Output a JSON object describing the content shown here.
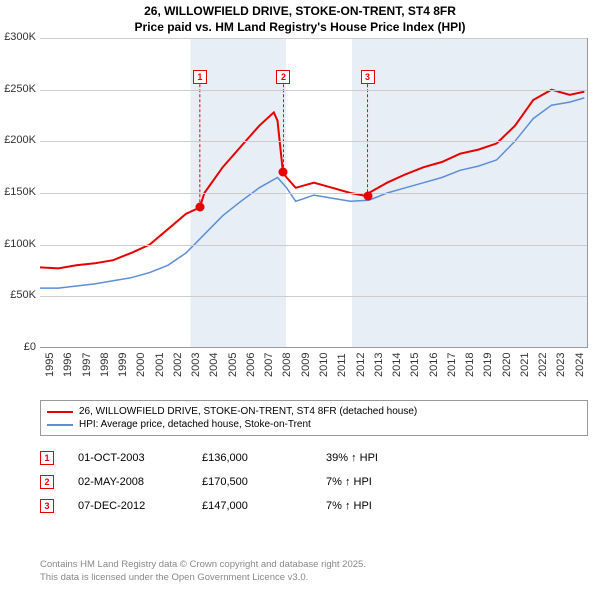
{
  "title_line1": "26, WILLOWFIELD DRIVE, STOKE-ON-TRENT, ST4 8FR",
  "title_line2": "Price paid vs. HM Land Registry's House Price Index (HPI)",
  "chart": {
    "type": "line",
    "background_color": "#ffffff",
    "shaded_color": "#e8eef6",
    "grid_color": "#cccccc",
    "ylim": [
      0,
      300000
    ],
    "ytick_step": 50000,
    "ytick_labels": [
      "£0",
      "£50K",
      "£100K",
      "£150K",
      "£200K",
      "£250K",
      "£300K"
    ],
    "xlim": [
      1995,
      2025
    ],
    "xticks": [
      1995,
      1996,
      1997,
      1998,
      1999,
      2000,
      2001,
      2002,
      2003,
      2004,
      2005,
      2006,
      2007,
      2008,
      2009,
      2010,
      2011,
      2012,
      2013,
      2014,
      2015,
      2016,
      2017,
      2018,
      2019,
      2020,
      2021,
      2022,
      2023,
      2024
    ],
    "series": [
      {
        "name": "property",
        "label": "26, WILLOWFIELD DRIVE, STOKE-ON-TRENT, ST4 8FR (detached house)",
        "color": "#e60000",
        "line_width": 2,
        "points": [
          [
            1995,
            78000
          ],
          [
            1996,
            77000
          ],
          [
            1997,
            80000
          ],
          [
            1998,
            82000
          ],
          [
            1999,
            85000
          ],
          [
            2000,
            92000
          ],
          [
            2001,
            100000
          ],
          [
            2002,
            115000
          ],
          [
            2003,
            130000
          ],
          [
            2003.75,
            136000
          ],
          [
            2004,
            150000
          ],
          [
            2005,
            175000
          ],
          [
            2006,
            195000
          ],
          [
            2007,
            215000
          ],
          [
            2007.8,
            228000
          ],
          [
            2008,
            220000
          ],
          [
            2008.3,
            170500
          ],
          [
            2008.5,
            165000
          ],
          [
            2009,
            155000
          ],
          [
            2010,
            160000
          ],
          [
            2011,
            155000
          ],
          [
            2012,
            150000
          ],
          [
            2012.9,
            147000
          ],
          [
            2013,
            150000
          ],
          [
            2014,
            160000
          ],
          [
            2015,
            168000
          ],
          [
            2016,
            175000
          ],
          [
            2017,
            180000
          ],
          [
            2018,
            188000
          ],
          [
            2019,
            192000
          ],
          [
            2020,
            198000
          ],
          [
            2021,
            215000
          ],
          [
            2022,
            240000
          ],
          [
            2023,
            250000
          ],
          [
            2024,
            245000
          ],
          [
            2024.8,
            248000
          ]
        ]
      },
      {
        "name": "hpi",
        "label": "HPI: Average price, detached house, Stoke-on-Trent",
        "color": "#5b8fd6",
        "line_width": 1.5,
        "points": [
          [
            1995,
            58000
          ],
          [
            1996,
            58000
          ],
          [
            1997,
            60000
          ],
          [
            1998,
            62000
          ],
          [
            1999,
            65000
          ],
          [
            2000,
            68000
          ],
          [
            2001,
            73000
          ],
          [
            2002,
            80000
          ],
          [
            2003,
            92000
          ],
          [
            2004,
            110000
          ],
          [
            2005,
            128000
          ],
          [
            2006,
            142000
          ],
          [
            2007,
            155000
          ],
          [
            2008,
            165000
          ],
          [
            2008.5,
            155000
          ],
          [
            2009,
            142000
          ],
          [
            2010,
            148000
          ],
          [
            2011,
            145000
          ],
          [
            2012,
            142000
          ],
          [
            2013,
            143000
          ],
          [
            2014,
            150000
          ],
          [
            2015,
            155000
          ],
          [
            2016,
            160000
          ],
          [
            2017,
            165000
          ],
          [
            2018,
            172000
          ],
          [
            2019,
            176000
          ],
          [
            2020,
            182000
          ],
          [
            2021,
            200000
          ],
          [
            2022,
            222000
          ],
          [
            2023,
            235000
          ],
          [
            2024,
            238000
          ],
          [
            2024.8,
            242000
          ]
        ]
      }
    ],
    "markers": [
      {
        "n": "1",
        "x": 2003.75,
        "y": 136000,
        "box_y": 262000
      },
      {
        "n": "2",
        "x": 2008.33,
        "y": 170500,
        "box_y": 262000
      },
      {
        "n": "3",
        "x": 2012.93,
        "y": 147000,
        "box_y": 262000
      }
    ]
  },
  "legend": {
    "items": [
      {
        "color": "#e60000",
        "label": "26, WILLOWFIELD DRIVE, STOKE-ON-TRENT, ST4 8FR (detached house)"
      },
      {
        "color": "#5b8fd6",
        "label": "HPI: Average price, detached house, Stoke-on-Trent"
      }
    ]
  },
  "table": {
    "rows": [
      {
        "n": "1",
        "date": "01-OCT-2003",
        "price": "£136,000",
        "delta": "39% ↑ HPI"
      },
      {
        "n": "2",
        "date": "02-MAY-2008",
        "price": "£170,500",
        "delta": "7% ↑ HPI"
      },
      {
        "n": "3",
        "date": "07-DEC-2012",
        "price": "£147,000",
        "delta": "7% ↑ HPI"
      }
    ]
  },
  "footer_line1": "Contains HM Land Registry data © Crown copyright and database right 2025.",
  "footer_line2": "This data is licensed under the Open Government Licence v3.0."
}
